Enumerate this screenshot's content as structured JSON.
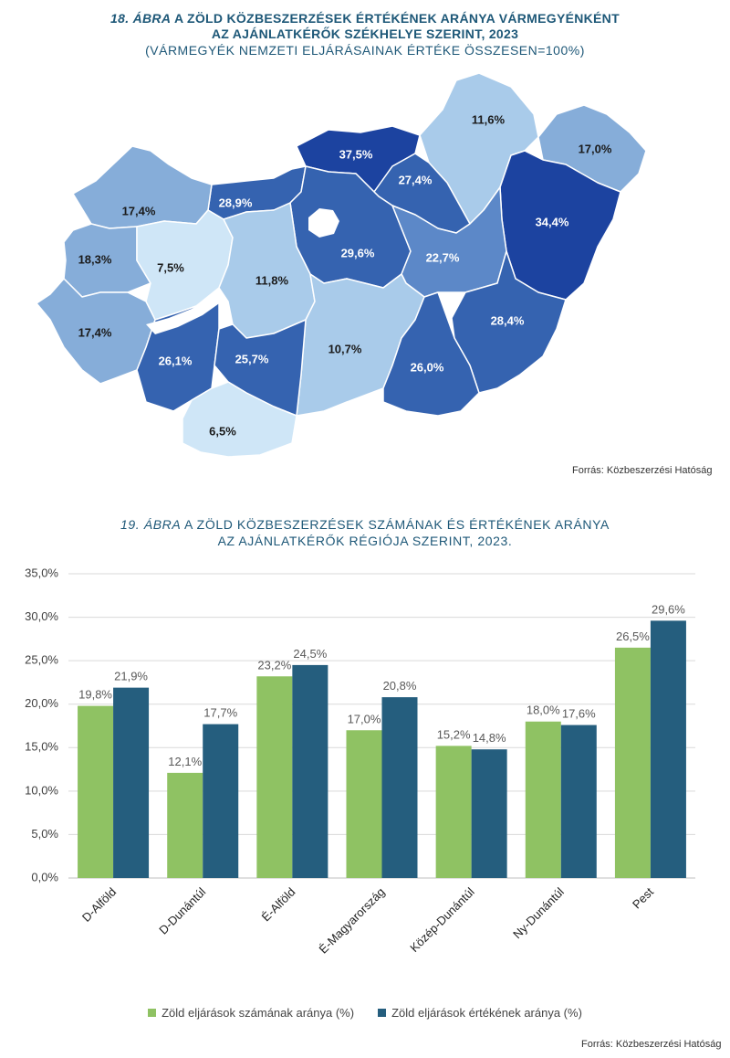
{
  "map_section": {
    "fig_number": "18.",
    "fig_label": "ÁBRA",
    "title_line1": "A ZÖLD KÖZBESZERZÉSEK ÉRTÉKÉNEK ARÁNYA VÁRMEGYÉNKÉNT",
    "title_line2": "AZ AJÁNLATKÉRŐK SZÉKHELYE SZERINT, 2023",
    "subtitle": "(VÁRMEGYÉK NEMZETI ELJÁRÁSAINAK ÉRTÉKE ÖSSZESEN=100%)",
    "source": "Forrás: Közbeszerzési Hatóság",
    "colors": {
      "very_light": "#cfe6f7",
      "light": "#a9cbea",
      "mid_light": "#86add9",
      "mid": "#5c88c8",
      "dark": "#3563b0",
      "darkest": "#1c43a0",
      "white_label": "#ffffff",
      "dark_label": "#1a1a1a"
    },
    "regions": [
      {
        "label": "37,5%",
        "value": 37.5
      },
      {
        "label": "11,6%",
        "value": 11.6
      },
      {
        "label": "17,0%",
        "value": 17.0
      },
      {
        "label": "27,4%",
        "value": 27.4
      },
      {
        "label": "34,4%",
        "value": 34.4
      },
      {
        "label": "28,9%",
        "value": 28.9
      },
      {
        "label": "17,4%",
        "value": 17.4
      },
      {
        "label": "29,6%",
        "value": 29.6
      },
      {
        "label": "22,7%",
        "value": 22.7
      },
      {
        "label": "18,3%",
        "value": 18.3
      },
      {
        "label": "7,5%",
        "value": 7.5
      },
      {
        "label": "11,8%",
        "value": 11.8
      },
      {
        "label": "17,4%",
        "value": 17.4
      },
      {
        "label": "28,4%",
        "value": 28.4
      },
      {
        "label": "10,7%",
        "value": 10.7
      },
      {
        "label": "26,1%",
        "value": 26.1
      },
      {
        "label": "25,7%",
        "value": 25.7
      },
      {
        "label": "26,0%",
        "value": 26.0
      },
      {
        "label": "6,5%",
        "value": 6.5
      }
    ]
  },
  "chart_section": {
    "fig_number": "19.",
    "fig_label": "ÁBRA",
    "title_line1": "A ZÖLD KÖZBESZERZÉSEK SZÁMÁNAK ÉS ÉRTÉKÉNEK ARÁNYA",
    "title_line2": "AZ AJÁNLATKÉRŐK RÉGIÓJA SZERINT, 2023.",
    "source": "Forrás: Közbeszerzési  Hatóság"
  },
  "chart_data": {
    "type": "bar",
    "title": "A ZÖLD KÖZBESZERZÉSEK SZÁMÁNAK ÉS ÉRTÉKÉNEK ARÁNYA AZ AJÁNLATKÉRŐK RÉGIÓJA SZERINT, 2023.",
    "categories": [
      "D-Alföld",
      "D-Dunántúl",
      "É-Alföld",
      "É-Magyarország",
      "Közép-Dunántúl",
      "Ny-Dunántúl",
      "Pest"
    ],
    "series": [
      {
        "name": "Zöld eljárások számának aránya (%)",
        "color": "#8fc263",
        "values": [
          19.8,
          12.1,
          23.2,
          17.0,
          15.2,
          18.0,
          26.5
        ],
        "labels": [
          "19,8%",
          "12,1%",
          "23,2%",
          "17,0%",
          "15,2%",
          "18,0%",
          "26,5%"
        ]
      },
      {
        "name": "Zöld eljárások értékének aránya (%)",
        "color": "#255e7e",
        "values": [
          21.9,
          17.7,
          24.5,
          20.8,
          14.8,
          17.6,
          29.6
        ],
        "labels": [
          "21,9%",
          "17,7%",
          "24,5%",
          "20,8%",
          "14,8%",
          "17,6%",
          "29,6%"
        ]
      }
    ],
    "ylim": [
      0,
      35
    ],
    "yticks": [
      0,
      5,
      10,
      15,
      20,
      25,
      30,
      35
    ],
    "ytick_labels": [
      "0,0%",
      "5,0%",
      "10,0%",
      "15,0%",
      "20,0%",
      "25,0%",
      "30,0%",
      "35,0%"
    ],
    "grid": true,
    "legend_position": "bottom",
    "xlabel": "",
    "ylabel": ""
  }
}
